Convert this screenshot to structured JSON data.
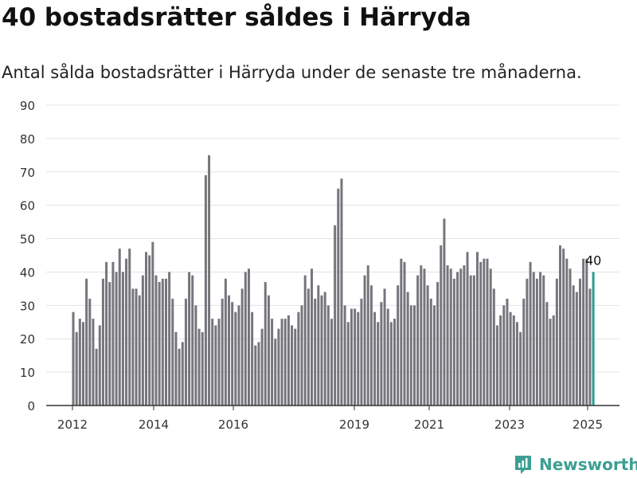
{
  "header": {
    "title": "40 bostadsrätter såldes i Härryda",
    "subtitle": "Antal sålda bostadsrätter i Härryda under de senaste tre månaderna."
  },
  "brand": {
    "name": "Newsworthy",
    "icon": "newsworthy-logo-icon"
  },
  "colors": {
    "bar": "#76757c",
    "highlight": "#2a9d8f",
    "grid": "#e3e3e3",
    "axis": "#333333"
  },
  "chart_data": {
    "type": "bar",
    "title": "",
    "xlabel": "",
    "ylabel": "",
    "ylim": [
      0,
      90
    ],
    "yticks": [
      0,
      10,
      20,
      30,
      40,
      50,
      60,
      70,
      80,
      90
    ],
    "xticks": [
      "2012",
      "2014",
      "2016",
      "2019",
      "2021",
      "2023",
      "2025"
    ],
    "grid": true,
    "series": [
      {
        "values": [
          28,
          22,
          26,
          25,
          38,
          32,
          26,
          17,
          24,
          38,
          43,
          37,
          43,
          40,
          47,
          40,
          44,
          47,
          35,
          35,
          33,
          39,
          46,
          45,
          49,
          39,
          37,
          38,
          38,
          40,
          32,
          22,
          17,
          19,
          32,
          40,
          39,
          30,
          23,
          22,
          69,
          75,
          26,
          24,
          26,
          32,
          38,
          33,
          31,
          28,
          30,
          35,
          40,
          41,
          28,
          18,
          19,
          23,
          37,
          33,
          26,
          20,
          23,
          26,
          26,
          27,
          24,
          23,
          28,
          30,
          39,
          35,
          41,
          32,
          36,
          33,
          34,
          30,
          26,
          54,
          65,
          68,
          30,
          25,
          29,
          29,
          28,
          32,
          39,
          42,
          36,
          28,
          25,
          31,
          35,
          29,
          25,
          26,
          36,
          44,
          43,
          34,
          30,
          30,
          39,
          42,
          41,
          36,
          32,
          30,
          37,
          48,
          56,
          42,
          41,
          38,
          40,
          41,
          42,
          46,
          39,
          39,
          46,
          43,
          44,
          44,
          41,
          35,
          24,
          27,
          30,
          32,
          28,
          27,
          25,
          22,
          32,
          38,
          43,
          40,
          38,
          40,
          39,
          31,
          26,
          27,
          38,
          48,
          47,
          44,
          41,
          36,
          34,
          38,
          44,
          44,
          35,
          40
        ]
      }
    ],
    "annotations": [
      {
        "index": 157,
        "text": "40"
      }
    ]
  }
}
